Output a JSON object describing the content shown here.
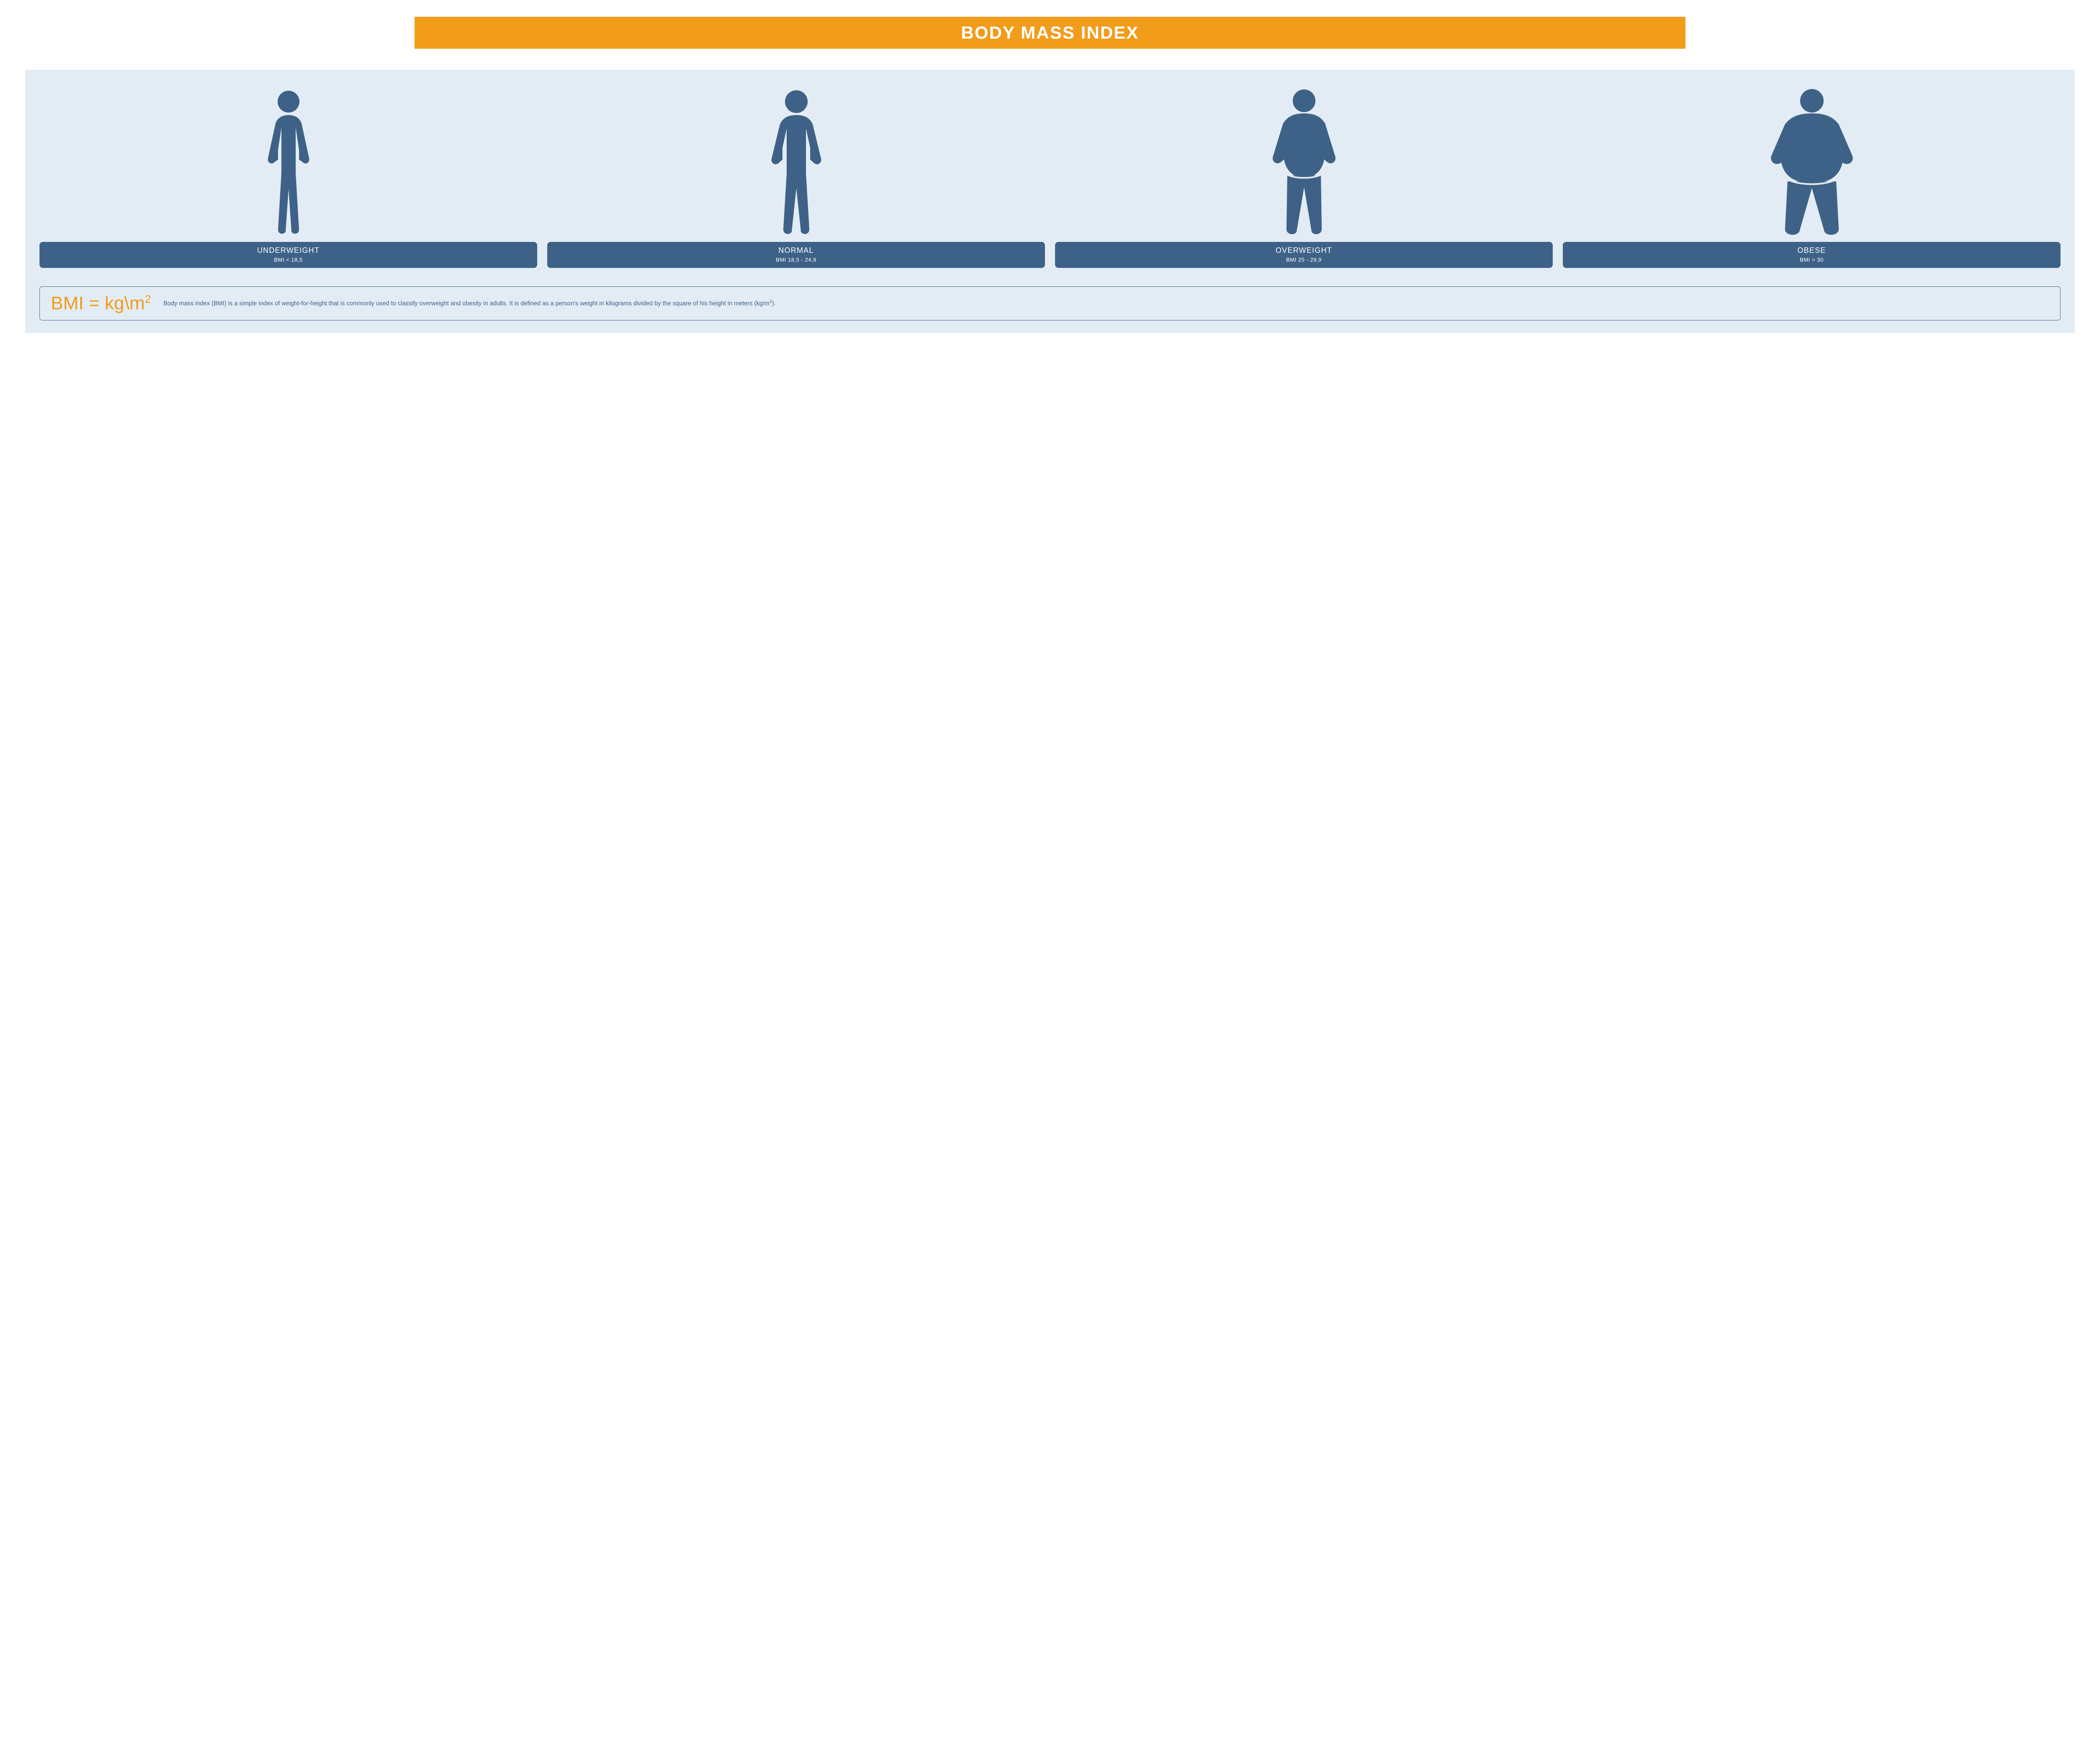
{
  "title": "BODY MASS INDEX",
  "colors": {
    "accent": "#f29c1b",
    "figure": "#3e6287",
    "panel_bg": "#e3ecf4",
    "label_bg": "#3e6287",
    "label_text": "#ffffff",
    "desc_text": "#3e6287",
    "page_bg": "#ffffff"
  },
  "categories": [
    {
      "name": "UNDERWEIGHT",
      "range": "BMI < 18,5",
      "body": "thin"
    },
    {
      "name": "NORMAL",
      "range": "BMI 18,5 - 24,9",
      "body": "normal"
    },
    {
      "name": "OVERWEIGHT",
      "range": "BMI 25 - 29,9",
      "body": "overweight"
    },
    {
      "name": "OBESE",
      "range": "BMI > 30",
      "body": "obese"
    }
  ],
  "formula": {
    "expression_html": "BMI = kg\\m<sup>2</sup>",
    "description_html": "Body mass index (BMI) is a simple index of weight-for-height that is commonly used to classify overweight and obesity in adults. It is defined as a person's weight in kilograms divided by the square of his height in meters (kg/m<sup>2</sup>)."
  },
  "layout": {
    "title_fontsize": 42,
    "label_name_fontsize": 18,
    "label_range_fontsize": 13,
    "formula_fontsize": 44,
    "desc_fontsize": 14.5,
    "figure_height": 360,
    "label_radius": 8
  }
}
